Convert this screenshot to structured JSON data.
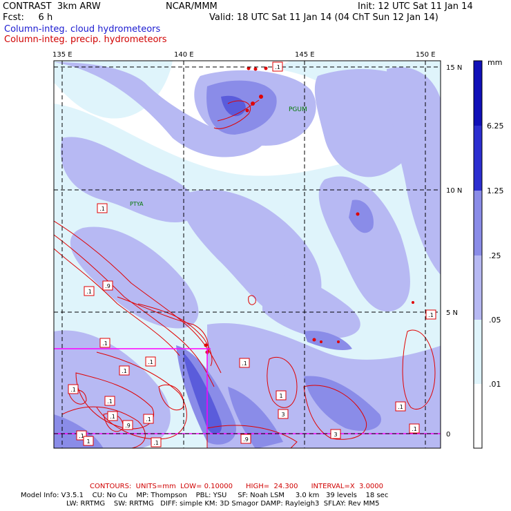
{
  "header": {
    "model": "CONTRAST  3km ARW",
    "org": "NCAR/MMM",
    "init": "Init: 12 UTC Sat 11 Jan 14",
    "fcst": "Fcst:     6 h",
    "valid": "Valid: 18 UTC Sat 11 Jan 14 (04 ChT Sun 12 Jan 14)",
    "field1": "Column-integ. cloud hydrometeors",
    "field2": "Column-integ. precip. hydrometeors",
    "field1_color": "#1a1ad0",
    "field2_color": "#d00000"
  },
  "axes": {
    "lon_labels": [
      "135 E",
      "140 E",
      "145 E",
      "150 E"
    ],
    "lat_labels": [
      "15 N",
      "10 N",
      "5 N",
      "0"
    ]
  },
  "stations": {
    "pgum": "PGUM",
    "ptya": "PTYA"
  },
  "colorbar": {
    "unit": "mm",
    "levels": [
      "6.25",
      "1.25",
      ".25",
      ".05",
      ".01"
    ],
    "colors": [
      "#ffffff",
      "#dff4fb",
      "#b7b9f3",
      "#8a8ce8",
      "#5a5cdb",
      "#2c2ed0",
      "#1010b8"
    ]
  },
  "contour_labels": [
    ".1",
    ".1",
    ".9",
    ".1",
    ".1",
    ".1",
    ".1",
    ".1",
    ".1",
    ".1",
    ".1",
    ".9",
    ".1",
    "1",
    "3",
    ".1",
    ".1",
    "3",
    ".9",
    ".1",
    ".1",
    "1",
    ".1"
  ],
  "footer": {
    "contours": "CONTOURS:  UNITS=mm  LOW= 0.10000      HIGH=  24.300      INTERVAL=X  3.0000",
    "line1": "Model Info: V3.5.1    CU: No Cu    MP: Thompson    PBL: YSU     SF: Noah LSM     3.0 km   39 levels    18 sec",
    "line2": "LW: RRTMG    SW: RRTMG   DIFF: simple KM: 3D Smagor DAMP: Rayleigh3  SFLAY: Rev MM5"
  }
}
